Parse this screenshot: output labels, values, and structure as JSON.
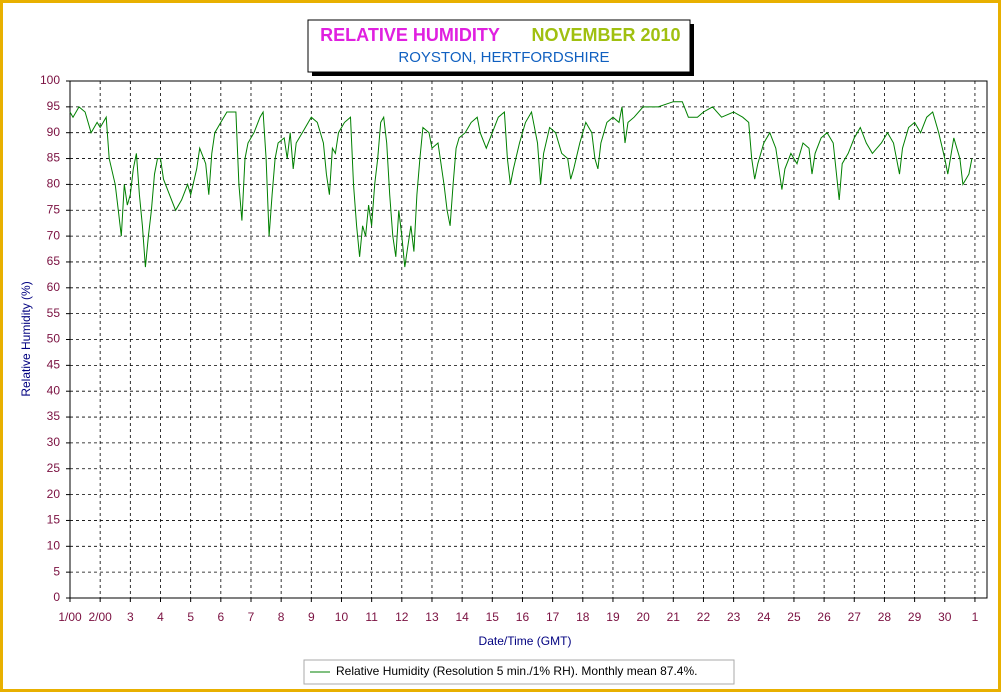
{
  "chart_data": {
    "type": "line",
    "title": "RELATIVE HUMIDITY",
    "title_period": "NOVEMBER 2010",
    "subtitle": "ROYSTON, HERTFORDSHIRE",
    "xlabel": "Date/Time (GMT)",
    "ylabel": "Relative Humidity (%)",
    "xlim": [
      1,
      31.4
    ],
    "ylim": [
      0,
      100
    ],
    "xticks": [
      {
        "value": 1,
        "label": "1/00"
      },
      {
        "value": 2,
        "label": "2/00"
      },
      3,
      4,
      5,
      6,
      7,
      8,
      9,
      10,
      11,
      12,
      13,
      14,
      15,
      16,
      17,
      18,
      19,
      20,
      21,
      22,
      23,
      24,
      25,
      26,
      27,
      28,
      29,
      30,
      {
        "value": 31,
        "label": "1"
      }
    ],
    "yticks": [
      0,
      5,
      10,
      15,
      20,
      25,
      30,
      35,
      40,
      45,
      50,
      55,
      60,
      65,
      70,
      75,
      80,
      85,
      90,
      95,
      100
    ],
    "grid": true,
    "x": [
      1.0,
      1.1,
      1.3,
      1.5,
      1.7,
      1.9,
      2.0,
      2.2,
      2.3,
      2.5,
      2.6,
      2.7,
      2.8,
      2.9,
      3.0,
      3.1,
      3.2,
      3.3,
      3.4,
      3.5,
      3.6,
      3.7,
      3.8,
      3.9,
      4.0,
      4.1,
      4.3,
      4.5,
      4.7,
      4.9,
      5.0,
      5.2,
      5.3,
      5.5,
      5.6,
      5.7,
      5.8,
      6.0,
      6.2,
      6.5,
      6.6,
      6.7,
      6.8,
      6.9,
      7.1,
      7.3,
      7.4,
      7.5,
      7.6,
      7.7,
      7.8,
      7.9,
      8.1,
      8.2,
      8.3,
      8.4,
      8.5,
      8.7,
      8.9,
      9.0,
      9.2,
      9.4,
      9.5,
      9.6,
      9.7,
      9.8,
      9.9,
      10.1,
      10.3,
      10.4,
      10.5,
      10.6,
      10.7,
      10.8,
      10.9,
      11.0,
      11.1,
      11.2,
      11.3,
      11.4,
      11.5,
      11.6,
      11.7,
      11.8,
      11.9,
      12.0,
      12.1,
      12.2,
      12.3,
      12.4,
      12.5,
      12.6,
      12.7,
      12.9,
      13.0,
      13.2,
      13.4,
      13.5,
      13.6,
      13.7,
      13.8,
      13.9,
      14.1,
      14.3,
      14.5,
      14.6,
      14.8,
      15.0,
      15.2,
      15.4,
      15.5,
      15.6,
      15.7,
      15.9,
      16.1,
      16.3,
      16.5,
      16.6,
      16.7,
      16.9,
      17.1,
      17.3,
      17.5,
      17.6,
      17.7,
      17.9,
      18.1,
      18.3,
      18.4,
      18.5,
      18.6,
      18.8,
      19.0,
      19.2,
      19.3,
      19.4,
      19.5,
      19.7,
      20.0,
      20.5,
      21.0,
      21.3,
      21.5,
      21.8,
      22.0,
      22.3,
      22.6,
      23.0,
      23.3,
      23.5,
      23.6,
      23.7,
      23.8,
      24.0,
      24.2,
      24.4,
      24.6,
      24.7,
      24.9,
      25.1,
      25.3,
      25.5,
      25.6,
      25.7,
      25.9,
      26.1,
      26.3,
      26.5,
      26.6,
      26.8,
      27.0,
      27.2,
      27.4,
      27.6,
      27.9,
      28.1,
      28.3,
      28.5,
      28.6,
      28.8,
      29.0,
      29.2,
      29.4,
      29.6,
      29.8,
      30.0,
      30.1,
      30.3,
      30.5,
      30.6,
      30.8,
      30.9
    ],
    "series": [
      {
        "name": "Relative Humidity (Resolution 5 min./1% RH). Monthly mean 87.4%.",
        "color": "#008000",
        "values": [
          94,
          93,
          95,
          94,
          90,
          92,
          91,
          93,
          85,
          80,
          75,
          70,
          80,
          76,
          78,
          83,
          86,
          78,
          72,
          64,
          70,
          75,
          82,
          85,
          85,
          81,
          78,
          75,
          77,
          80,
          78,
          83,
          87,
          84,
          78,
          86,
          90,
          92,
          94,
          94,
          80,
          73,
          85,
          88,
          90,
          93,
          94,
          85,
          70,
          78,
          85,
          88,
          89,
          85,
          90,
          83,
          88,
          90,
          92,
          93,
          92,
          88,
          82,
          78,
          87,
          86,
          90,
          92,
          93,
          80,
          72,
          66,
          72,
          70,
          76,
          72,
          80,
          85,
          92,
          93,
          88,
          78,
          70,
          66,
          75,
          70,
          64,
          68,
          72,
          67,
          78,
          85,
          91,
          90,
          87,
          88,
          80,
          75,
          72,
          80,
          87,
          89,
          90,
          92,
          93,
          90,
          87,
          90,
          93,
          94,
          85,
          80,
          83,
          88,
          92,
          94,
          88,
          80,
          86,
          91,
          90,
          86,
          85,
          81,
          83,
          88,
          92,
          90,
          85,
          83,
          88,
          92,
          93,
          92,
          95,
          88,
          92,
          93,
          95,
          95,
          96,
          96,
          93,
          93,
          94,
          95,
          93,
          94,
          93,
          92,
          85,
          81,
          84,
          88,
          90,
          87,
          79,
          83,
          86,
          84,
          88,
          87,
          82,
          86,
          89,
          90,
          88,
          77,
          84,
          86,
          89,
          91,
          88,
          86,
          88,
          90,
          88,
          82,
          87,
          91,
          92,
          90,
          93,
          94,
          90,
          85,
          82,
          89,
          85,
          80,
          82,
          85
        ]
      }
    ]
  }
}
